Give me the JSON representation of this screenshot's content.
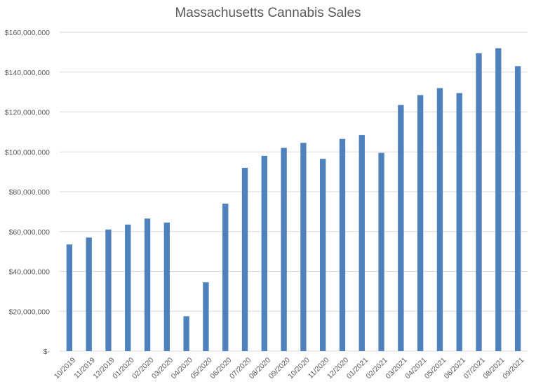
{
  "chart_data": {
    "type": "bar",
    "title": "Massachusetts Cannabis Sales",
    "xlabel": "",
    "ylabel": "",
    "categories": [
      "10/2019",
      "11/2019",
      "12/2019",
      "01/2020",
      "02/2020",
      "03/2020",
      "04/2020",
      "05/2020",
      "06/2020",
      "07/2020",
      "08/2020",
      "09/2020",
      "10/2020",
      "11/2020",
      "12/2020",
      "01/2021",
      "02/2021",
      "03/2021",
      "04/2021",
      "05/2021",
      "06/2021",
      "07/2021",
      "08/2021",
      "09/2021"
    ],
    "values": [
      53500000,
      57000000,
      61000000,
      63500000,
      66500000,
      64500000,
      17500000,
      34500000,
      74000000,
      92000000,
      98000000,
      102000000,
      104500000,
      96500000,
      106500000,
      108500000,
      99500000,
      123500000,
      128500000,
      132000000,
      129500000,
      149500000,
      152000000,
      143000000
    ],
    "ylim": [
      0,
      160000000
    ],
    "yticks": [
      0,
      20000000,
      40000000,
      60000000,
      80000000,
      100000000,
      120000000,
      140000000,
      160000000
    ],
    "ytick_labels": [
      "$-",
      "$20,000,000",
      "$40,000,000",
      "$60,000,000",
      "$80,000,000",
      "$100,000,000",
      "$120,000,000",
      "$140,000,000",
      "$160,000,000"
    ],
    "grid": true,
    "legend": "none",
    "bar_color": "#4F81BD",
    "grid_color": "#D9D9D9"
  }
}
